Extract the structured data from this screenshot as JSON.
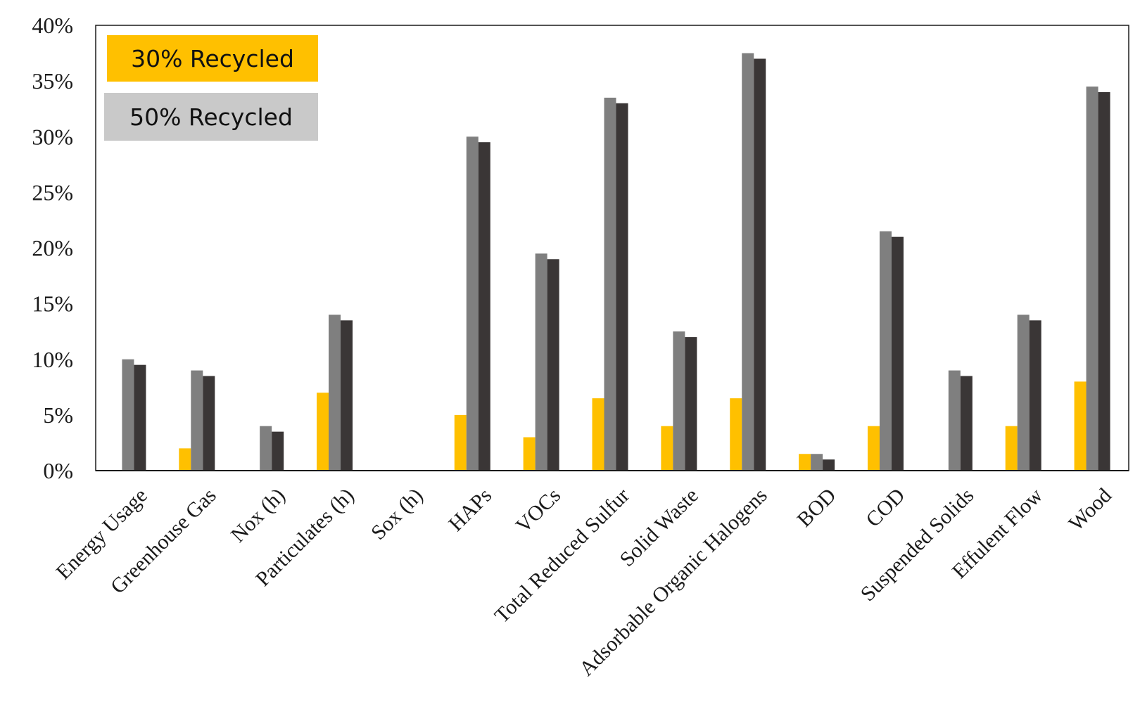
{
  "chart_data": {
    "type": "bar",
    "title": "",
    "xlabel": "",
    "ylabel": "",
    "ylim": [
      0,
      40
    ],
    "y_tick_values": [
      0,
      5,
      10,
      15,
      20,
      25,
      30,
      35,
      40
    ],
    "y_tick_labels": [
      "0%",
      "5%",
      "10%",
      "15%",
      "20%",
      "25%",
      "30%",
      "35%",
      "40%"
    ],
    "grid": false,
    "legend_position": "top-left",
    "categories": [
      "Energy Usage",
      "Greenhouse Gas",
      "Nox (h)",
      "Particulates (h)",
      "Sox (h)",
      "HAPs",
      "VOCs",
      "Total Reduced Sulfur",
      "Solid Waste",
      "Adsorbable Organic Halogens",
      "BOD",
      "COD",
      "Suspended Solids",
      "Effulent Flow",
      "Wood"
    ],
    "series": [
      {
        "name": "30% Recycled",
        "color": "#FFC000",
        "values": [
          0,
          2,
          0,
          7,
          0,
          5,
          3,
          6.5,
          4,
          6.5,
          1.5,
          4,
          0,
          4,
          8
        ]
      },
      {
        "name": "50% Recycled",
        "color": "#7F7F7F",
        "values": [
          10,
          9,
          4,
          14,
          0,
          30,
          19.5,
          33.5,
          12.5,
          37.5,
          1.5,
          21.5,
          9,
          14,
          34.5
        ]
      },
      {
        "name": "",
        "color": "#3A3636",
        "values": [
          9.5,
          8.5,
          3.5,
          13.5,
          0,
          29.5,
          19,
          33,
          12,
          37,
          1,
          21,
          8.5,
          13.5,
          34
        ]
      }
    ],
    "legend": [
      {
        "label": "30% Recycled",
        "color": "#FFC000"
      },
      {
        "label": "50% Recycled",
        "color": "#C9C9C9"
      }
    ]
  }
}
